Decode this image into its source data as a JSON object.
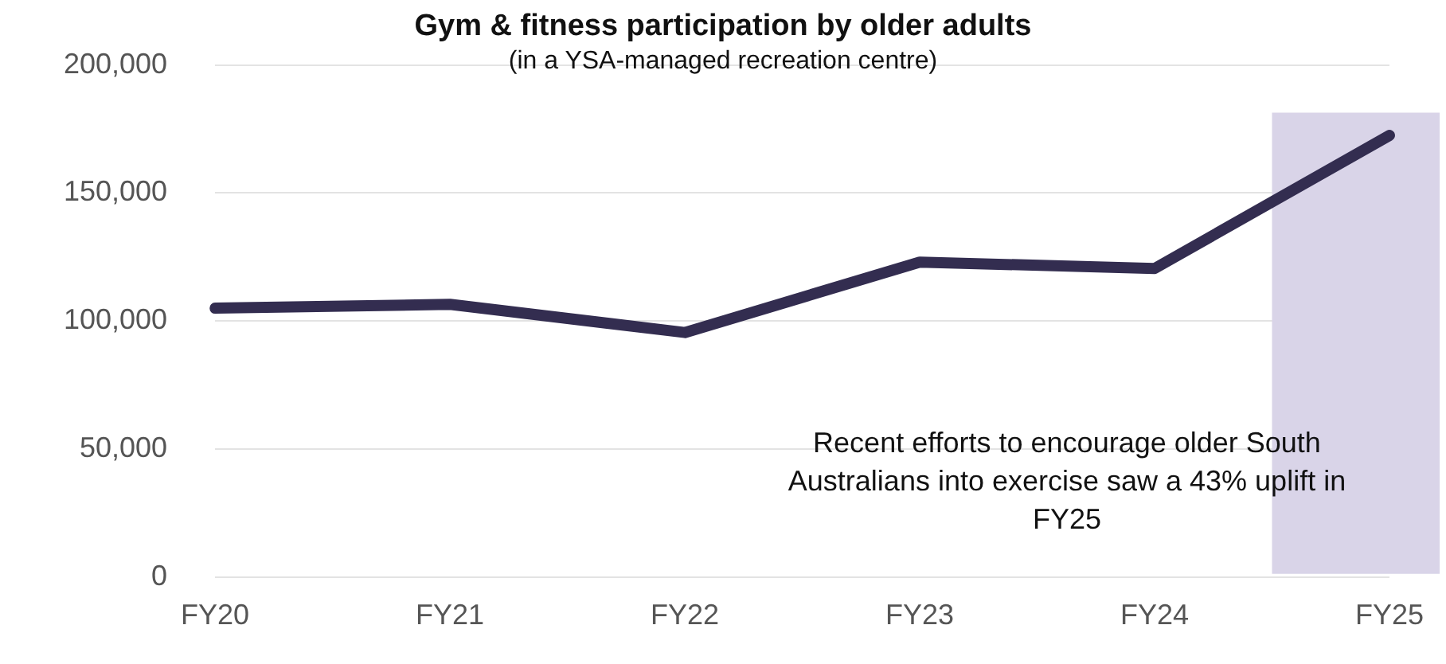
{
  "chart_data": {
    "type": "line",
    "title": "Gym & fitness participation by older adults",
    "subtitle": "(in a YSA-managed recreation centre)",
    "categories": [
      "FY20",
      "FY21",
      "FY22",
      "FY23",
      "FY24",
      "FY25"
    ],
    "series": [
      {
        "color": "#332d50",
        "values": [
          105000,
          106500,
          95500,
          123000,
          120500,
          172500
        ]
      }
    ],
    "ylim": [
      0,
      200000
    ],
    "yticks": [
      {
        "value": 0,
        "label": "0"
      },
      {
        "value": 50000,
        "label": "50,000"
      },
      {
        "value": 100000,
        "label": "100,000"
      },
      {
        "value": 150000,
        "label": "150,000"
      },
      {
        "value": 200000,
        "label": "200,000"
      }
    ],
    "grid": "y",
    "legend": false,
    "marker": "none",
    "line_style": "solid",
    "bands": [
      {
        "axis": "x",
        "from": "FY25",
        "to": "FY25",
        "color": "#d9d4e8"
      }
    ],
    "annotations": [
      "Recent efforts to encourage older South Australians into exercise saw a 43% uplift in FY25"
    ]
  }
}
